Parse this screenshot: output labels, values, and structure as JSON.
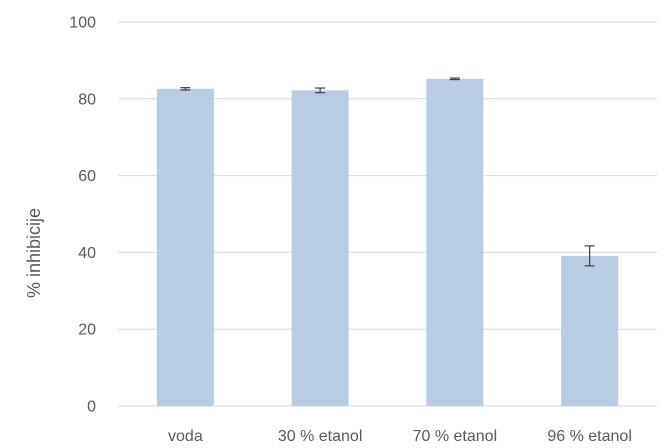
{
  "chart_data": {
    "type": "bar",
    "title": "",
    "xlabel": "",
    "ylabel": "% inhibicije",
    "categories": [
      "voda",
      "30 % etanol",
      "70 % etanol",
      "96 % etanol"
    ],
    "values": [
      82.6,
      82.2,
      85.2,
      39.1
    ],
    "errors": [
      0.3,
      0.6,
      0.2,
      2.6
    ],
    "ylim": [
      0,
      100
    ],
    "yticks": [
      0,
      20,
      40,
      60,
      80,
      100
    ],
    "grid": true,
    "legend": "none",
    "colors": {
      "bar": "#b8cce4",
      "grid": "#d9d9d9",
      "errorbar": "#404040",
      "text": "#595959"
    }
  }
}
